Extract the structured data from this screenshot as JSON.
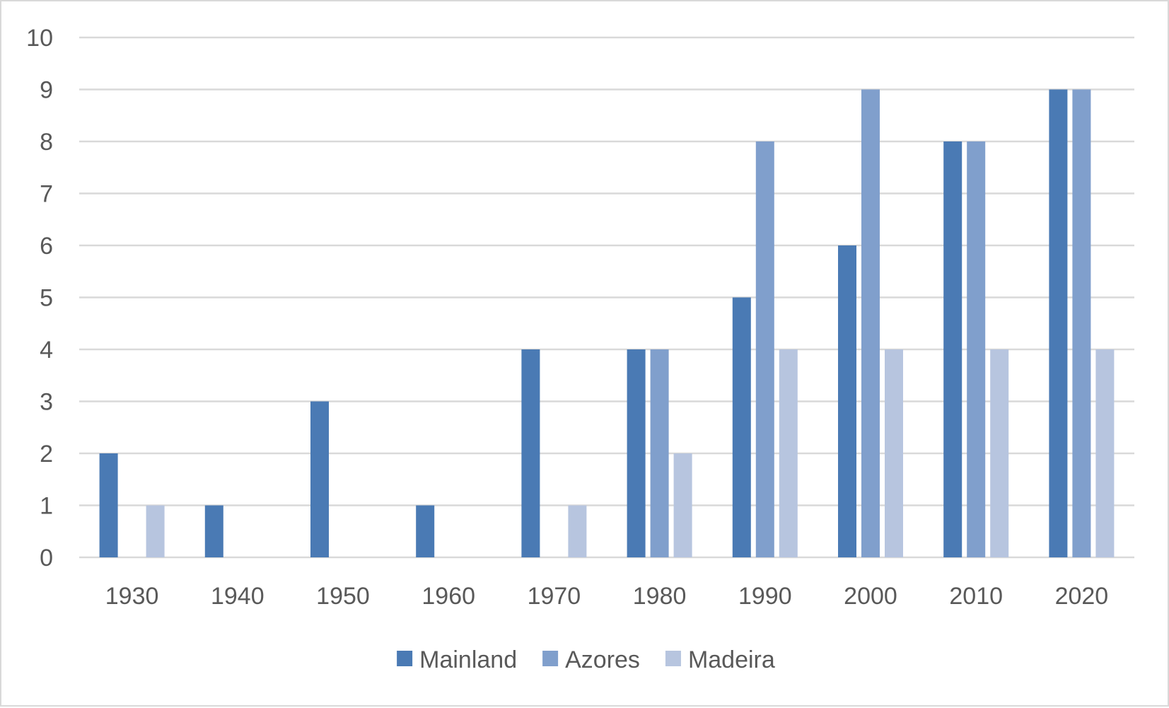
{
  "chart_data": {
    "type": "bar",
    "title": "",
    "xlabel": "",
    "ylabel": "",
    "categories": [
      "1930",
      "1940",
      "1950",
      "1960",
      "1970",
      "1980",
      "1990",
      "2000",
      "2010",
      "2020"
    ],
    "series": [
      {
        "name": "Mainland",
        "color": "#4a7ab4",
        "values": [
          2,
          1,
          3,
          1,
          4,
          4,
          5,
          6,
          8,
          9
        ]
      },
      {
        "name": "Azores",
        "color": "#809fcc",
        "values": [
          0,
          0,
          0,
          0,
          0,
          4,
          8,
          9,
          8,
          9
        ]
      },
      {
        "name": "Madeira",
        "color": "#b7c5df",
        "values": [
          1,
          0,
          0,
          0,
          1,
          2,
          4,
          4,
          4,
          4
        ]
      }
    ],
    "ylim": [
      0,
      10
    ],
    "yticks": [
      "0",
      "1",
      "2",
      "3",
      "4",
      "5",
      "6",
      "7",
      "8",
      "9",
      "10"
    ],
    "grid": true,
    "gridline_color": "#d9d9d9",
    "legend_position": "bottom"
  }
}
